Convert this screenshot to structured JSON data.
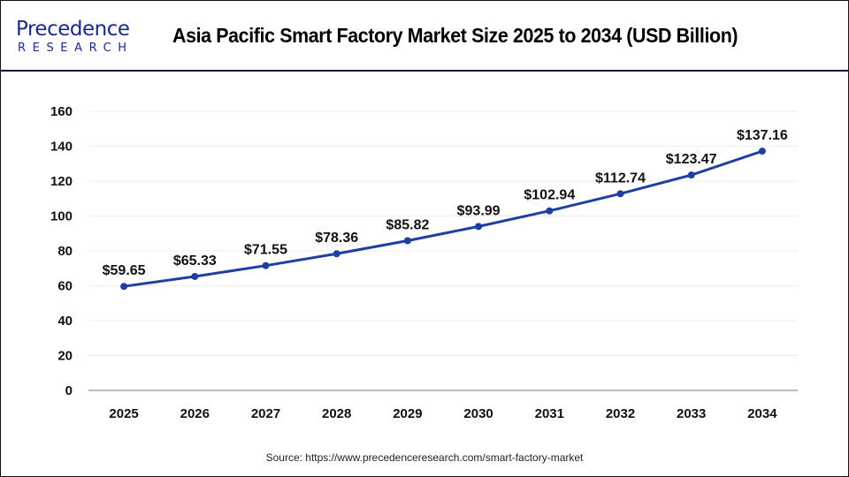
{
  "header": {
    "logo_top": "Precedence",
    "logo_bottom": "RESEARCH",
    "title": "Asia Pacific Smart Factory Market Size 2025 to 2034 (USD Billion)"
  },
  "source": "Source: https://www.precedenceresearch.com/smart-factory-market",
  "chart_data": {
    "type": "line",
    "title": "Asia Pacific Smart Factory Market Size 2025 to 2034 (USD Billion)",
    "categories": [
      "2025",
      "2026",
      "2027",
      "2028",
      "2029",
      "2030",
      "2031",
      "2032",
      "2033",
      "2034"
    ],
    "values": [
      59.65,
      65.33,
      71.55,
      78.36,
      85.82,
      93.99,
      102.94,
      112.74,
      123.47,
      137.16
    ],
    "data_labels": [
      "$59.65",
      "$65.33",
      "$71.55",
      "$78.36",
      "$85.82",
      "$93.99",
      "$102.94",
      "$112.74",
      "$123.47",
      "$137.16"
    ],
    "ylim": [
      0,
      160
    ],
    "yticks": [
      0,
      20,
      40,
      60,
      80,
      100,
      120,
      140,
      160
    ],
    "grid": true,
    "line_color": "#1f3fa0",
    "xlabel": "",
    "ylabel": ""
  }
}
